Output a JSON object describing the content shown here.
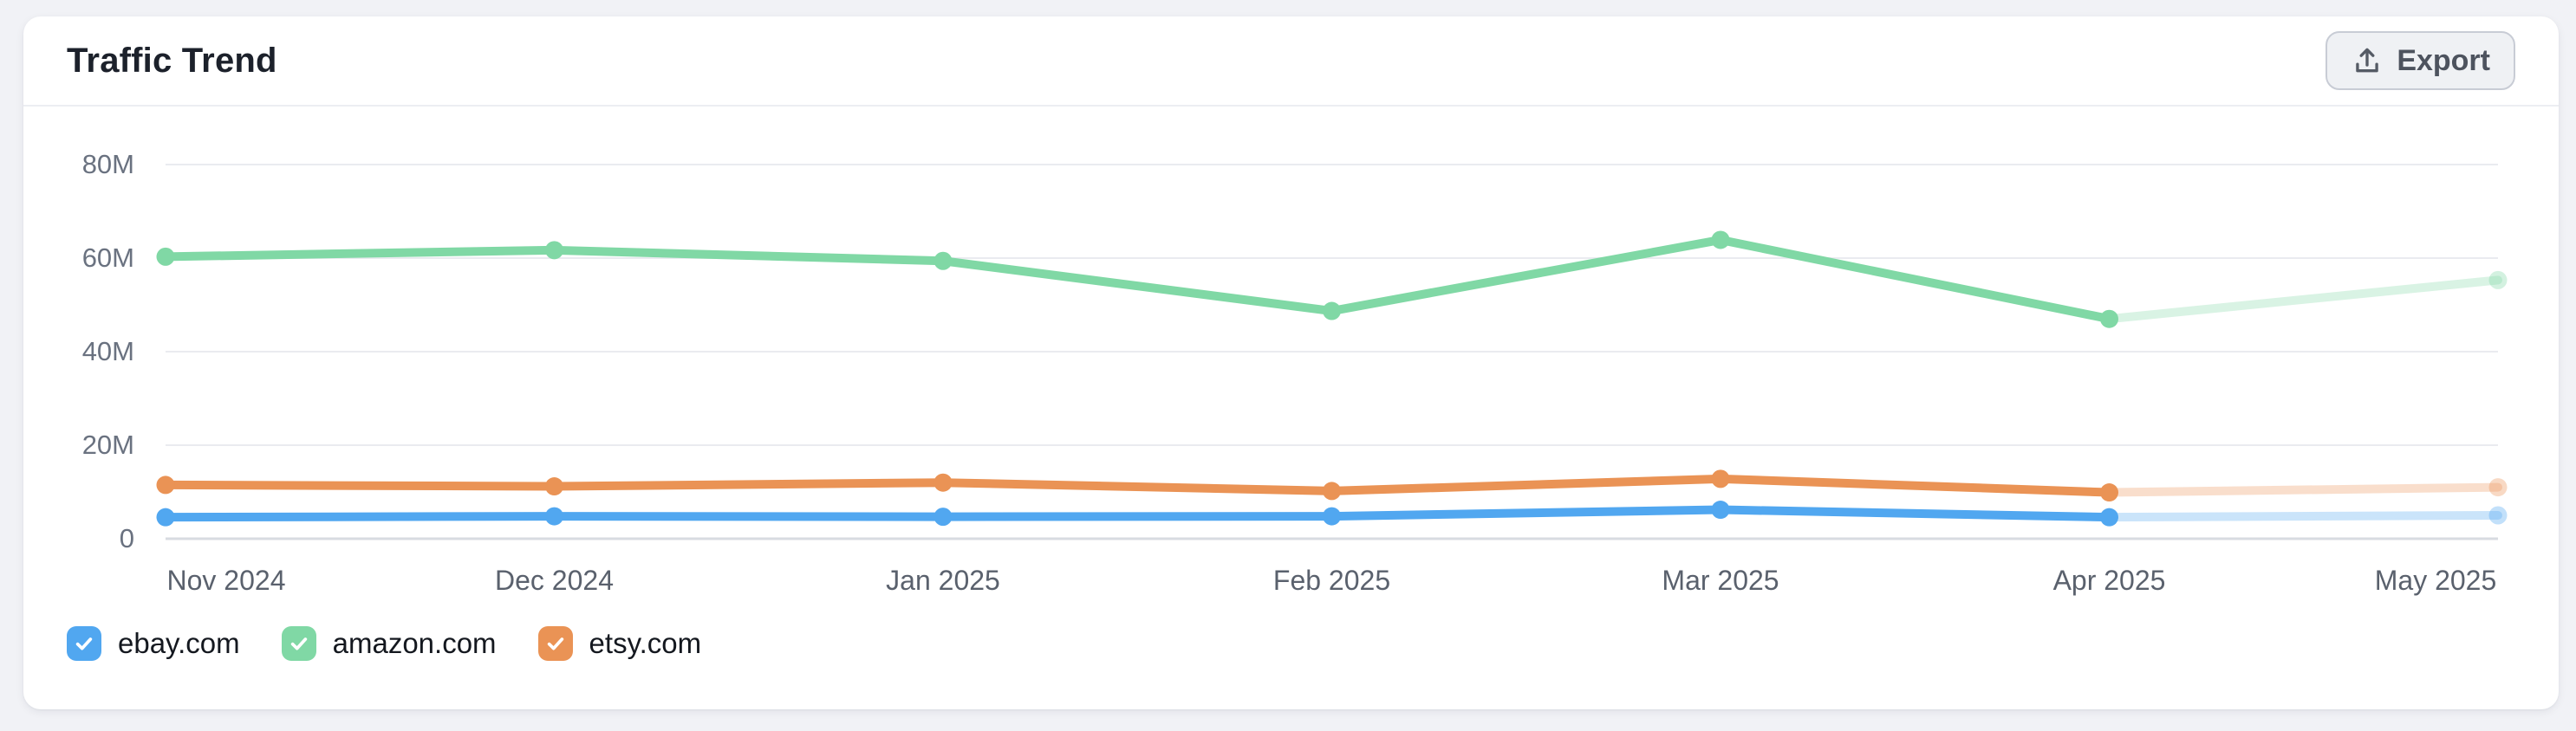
{
  "page": {
    "background_color": "#F1F2F6"
  },
  "card": {
    "title": "Traffic Trend",
    "export_label": "Export"
  },
  "chart_data": {
    "type": "line",
    "title": "Traffic Trend",
    "x": [
      "Nov 2024",
      "Dec 2024",
      "Jan 2025",
      "Feb 2025",
      "Mar 2025",
      "Apr 2025",
      "May 2025"
    ],
    "series": [
      {
        "name": "ebay.com",
        "color": "#51A7F0",
        "values_millions": [
          4.6,
          4.8,
          4.7,
          4.8,
          6.2,
          4.6,
          5.0
        ],
        "checked": true
      },
      {
        "name": "amazon.com",
        "color": "#80D8A5",
        "values_millions": [
          60.3,
          61.7,
          59.4,
          48.7,
          63.9,
          47.0,
          55.3
        ],
        "checked": true
      },
      {
        "name": "etsy.com",
        "color": "#EA9355",
        "values_millions": [
          11.5,
          11.2,
          12.0,
          10.2,
          12.8,
          9.9,
          11.0
        ],
        "checked": true
      }
    ],
    "y_ticks": [
      {
        "label": "80M",
        "value": 80
      },
      {
        "label": "60M",
        "value": 60
      },
      {
        "label": "40M",
        "value": 40
      },
      {
        "label": "20M",
        "value": 20
      },
      {
        "label": "0",
        "value": 0
      }
    ],
    "ylim_millions": [
      0,
      80
    ],
    "grid": true,
    "legend_position": "bottom-left",
    "last_segment_projected": true,
    "projection_opacity": 0.3,
    "colors": {
      "gridline": "#EAEBF0",
      "zero_line": "#D8DBE1",
      "y_label": "#6A7280",
      "x_label": "#5A616D"
    }
  }
}
